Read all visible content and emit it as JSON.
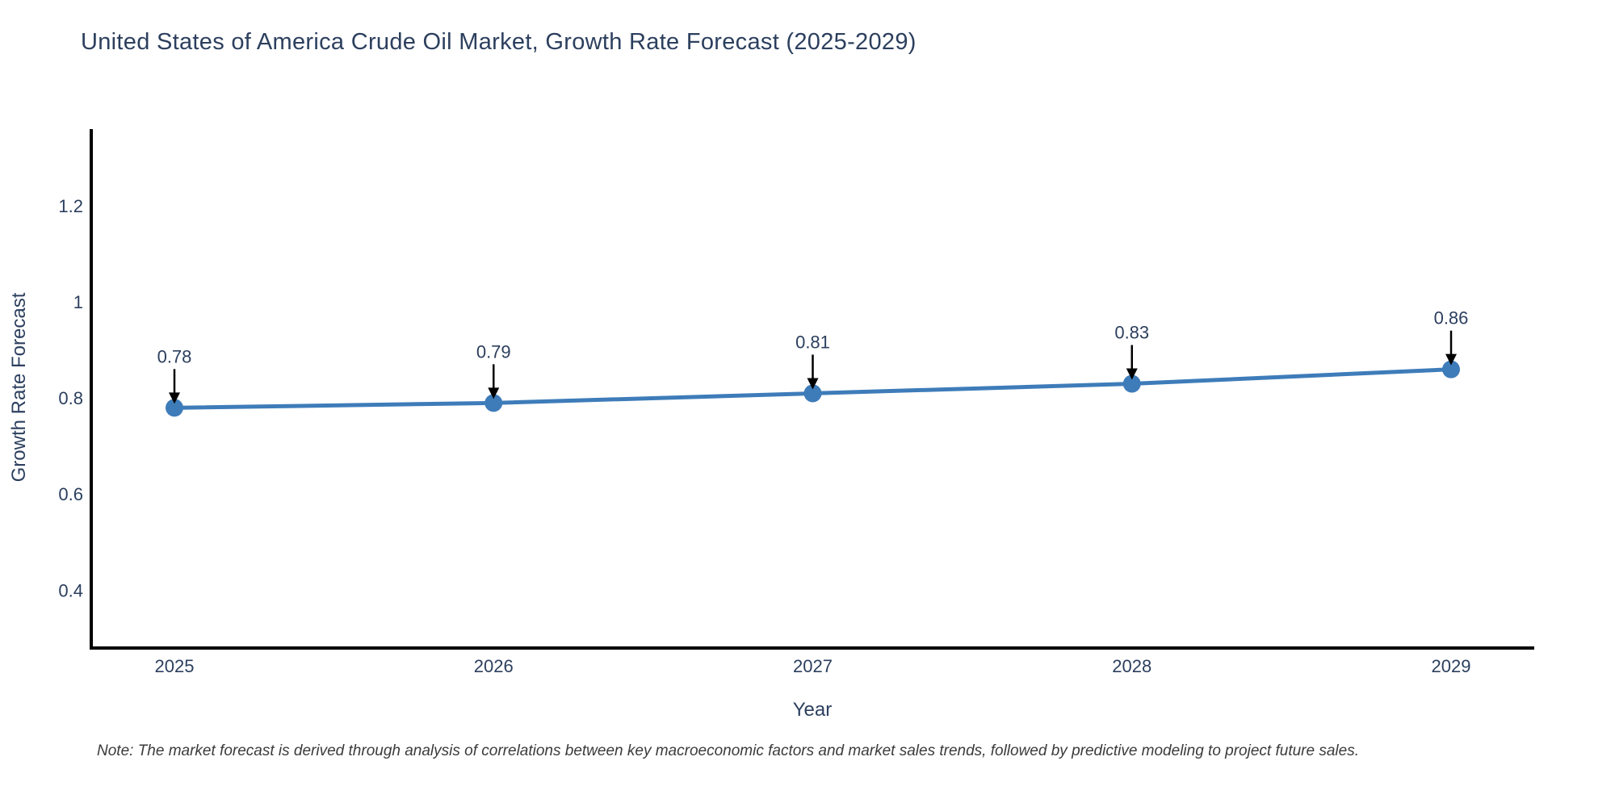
{
  "chart_data": {
    "type": "line",
    "title": "United States of America Crude Oil Market, Growth Rate Forecast (2025-2029)",
    "xlabel": "Year",
    "ylabel": "Growth Rate Forecast",
    "categories": [
      "2025",
      "2026",
      "2027",
      "2028",
      "2029"
    ],
    "series": [
      {
        "name": "Growth Rate Forecast",
        "values": [
          0.78,
          0.79,
          0.81,
          0.83,
          0.86
        ]
      }
    ],
    "point_labels": [
      "0.78",
      "0.79",
      "0.81",
      "0.83",
      "0.86"
    ],
    "ytick_values": [
      0.4,
      0.6,
      0.8,
      1,
      1.2
    ],
    "ytick_labels": [
      "0.4",
      "0.6",
      "0.8",
      "1",
      "1.2"
    ],
    "ylim": [
      0.28,
      1.36
    ],
    "grid": false,
    "legend": false,
    "annotation_style": "down-arrow",
    "colors": {
      "line": "#3E7CB9",
      "marker": "#3E7CB9",
      "axis": "#000000",
      "arrow": "#000000",
      "text": "#2C3F5E",
      "note": "#3B3B3B",
      "background": "#FFFFFF"
    },
    "note": "Note: The market forecast is derived through analysis of correlations between key macroeconomic factors and market sales trends, followed by predictive modeling to project future sales."
  }
}
